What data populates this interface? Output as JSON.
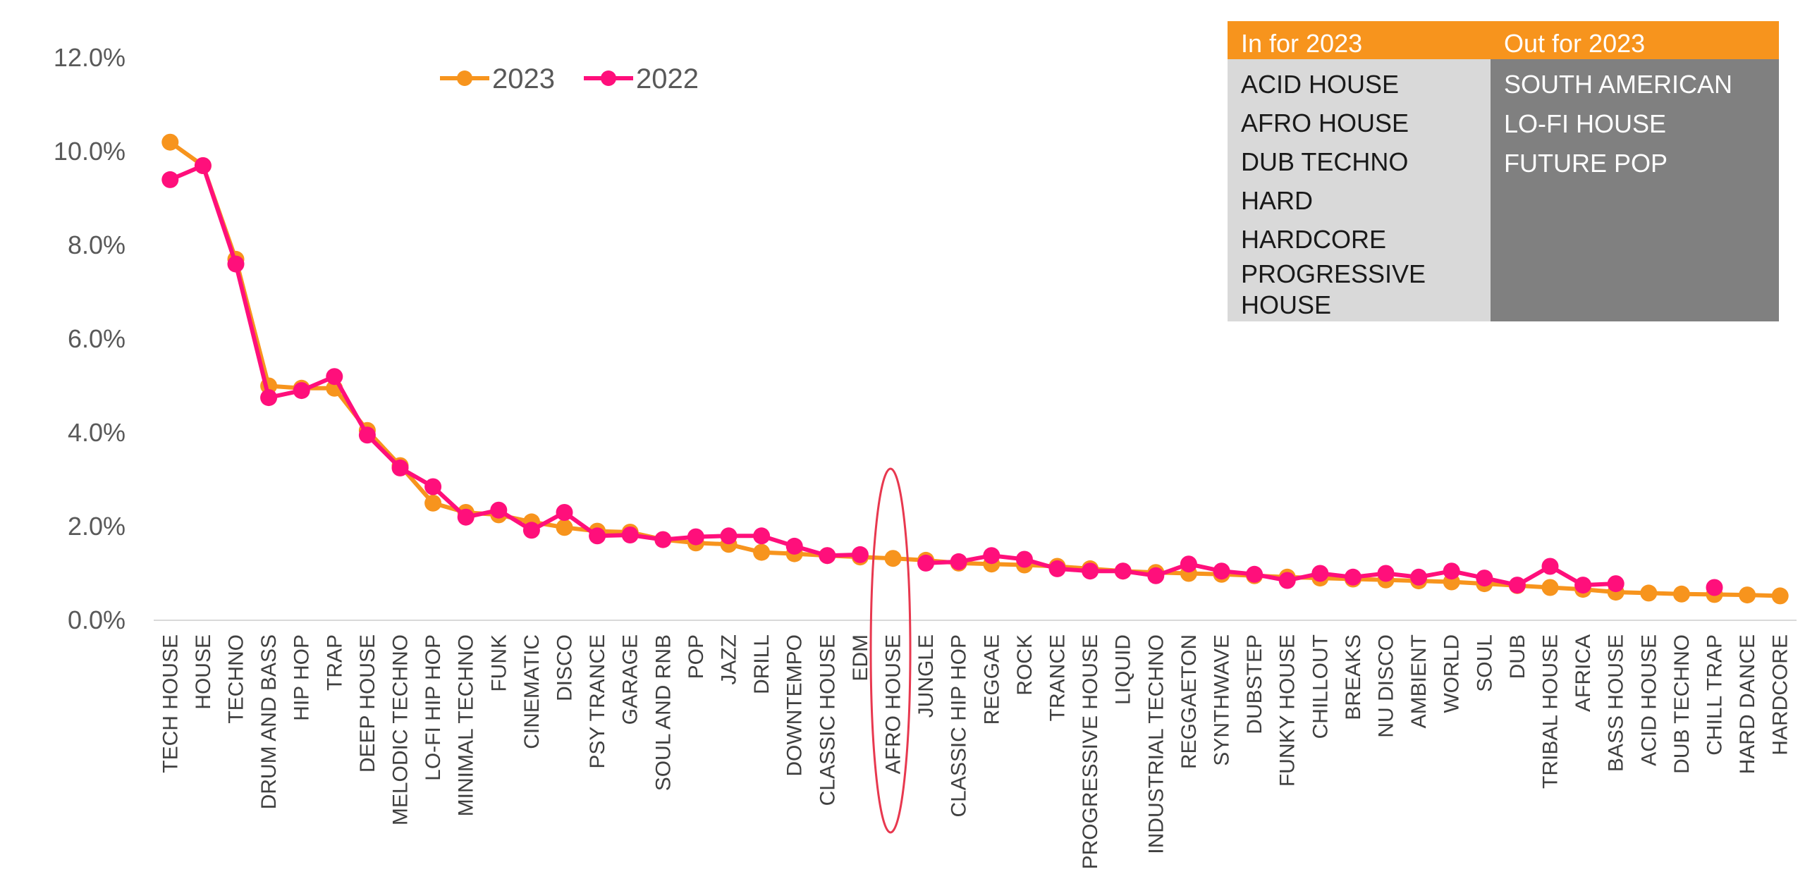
{
  "chart_data": {
    "type": "line",
    "title": "",
    "xlabel": "",
    "ylabel": "",
    "ylim": [
      0,
      12
    ],
    "yticks": [
      "0.0%",
      "2.0%",
      "4.0%",
      "6.0%",
      "8.0%",
      "10.0%",
      "12.0%"
    ],
    "categories": [
      "TECH HOUSE",
      "HOUSE",
      "TECHNO",
      "DRUM AND BASS",
      "HIP HOP",
      "TRAP",
      "DEEP HOUSE",
      "MELODIC TECHNO",
      "LO-FI HIP HOP",
      "MINIMAL TECHNO",
      "FUNK",
      "CINEMATIC",
      "DISCO",
      "PSY TRANCE",
      "GARAGE",
      "SOUL AND RNB",
      "POP",
      "JAZZ",
      "DRILL",
      "DOWNTEMPO",
      "CLASSIC HOUSE",
      "EDM",
      "AFRO HOUSE",
      "JUNGLE",
      "CLASSIC HIP HOP",
      "REGGAE",
      "ROCK",
      "TRANCE",
      "PROGRESSIVE HOUSE",
      "LIQUID",
      "INDUSTRIAL TECHNO",
      "REGGAETON",
      "SYNTHWAVE",
      "DUBSTEP",
      "FUNKY HOUSE",
      "CHILLOUT",
      "BREAKS",
      "NU DISCO",
      "AMBIENT",
      "WORLD",
      "SOUL",
      "DUB",
      "TRIBAL HOUSE",
      "AFRICA",
      "BASS HOUSE",
      "ACID HOUSE",
      "DUB TECHNO",
      "CHILL TRAP",
      "HARD DANCE",
      "HARDCORE"
    ],
    "highlight_category": "AFRO HOUSE",
    "legend_position": "top",
    "series": [
      {
        "name": "2023",
        "color": "#f7941d",
        "values": [
          10.2,
          9.7,
          7.7,
          5.0,
          4.95,
          4.95,
          4.05,
          3.3,
          2.5,
          2.3,
          2.25,
          2.1,
          1.98,
          1.9,
          1.88,
          1.72,
          1.65,
          1.62,
          1.45,
          1.42,
          1.38,
          1.35,
          1.32,
          1.28,
          1.22,
          1.2,
          1.18,
          1.15,
          1.1,
          1.05,
          1.02,
          1.0,
          0.98,
          0.95,
          0.92,
          0.9,
          0.88,
          0.86,
          0.84,
          0.82,
          0.78,
          0.74,
          0.7,
          0.66,
          0.6,
          0.58,
          0.56,
          0.55,
          0.54,
          0.52
        ]
      },
      {
        "name": "2022",
        "color": "#ff0f7b",
        "values": [
          9.4,
          9.7,
          7.6,
          4.75,
          4.9,
          5.2,
          3.95,
          3.25,
          2.85,
          2.2,
          2.35,
          1.92,
          2.3,
          1.8,
          1.82,
          1.72,
          1.78,
          1.8,
          1.8,
          1.58,
          1.38,
          1.4,
          null,
          1.22,
          1.25,
          1.38,
          1.3,
          1.1,
          1.05,
          1.05,
          0.95,
          1.2,
          1.05,
          0.98,
          0.85,
          1.0,
          0.92,
          1.0,
          0.92,
          1.05,
          0.9,
          0.75,
          1.15,
          0.75,
          0.78,
          null,
          null,
          0.7,
          null,
          null
        ]
      }
    ]
  },
  "inout_table": {
    "in_header": "In for 2023",
    "out_header": "Out for 2023",
    "in_items": [
      "ACID HOUSE",
      "AFRO HOUSE",
      "DUB TECHNO",
      "HARD",
      "HARDCORE",
      "PROGRESSIVE HOUSE"
    ],
    "out_items": [
      "SOUTH AMERICAN",
      "LO-FI HOUSE",
      "FUTURE POP"
    ],
    "colors": {
      "header": "#f7941d",
      "in_bg": "#d9d9d9",
      "out_bg": "#808080"
    }
  }
}
